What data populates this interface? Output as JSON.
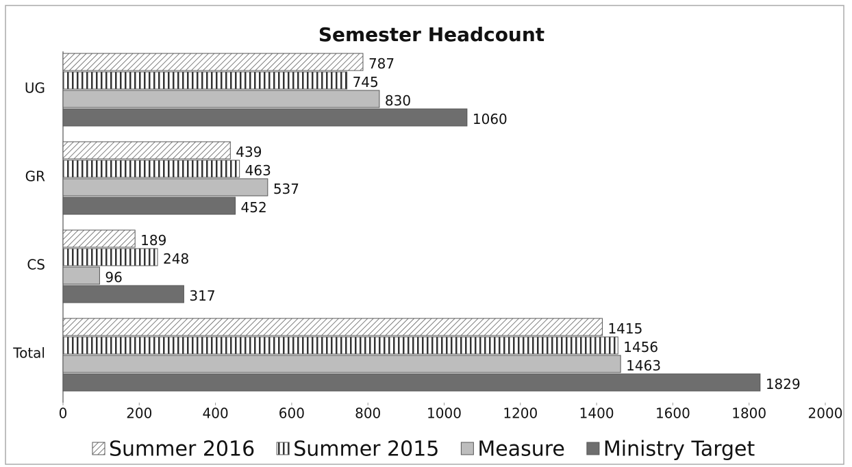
{
  "chart_data": {
    "type": "bar",
    "orientation": "horizontal",
    "title": "Semester Headcount",
    "categories": [
      "UG",
      "GR",
      "CS",
      "Total"
    ],
    "series": [
      {
        "name": "Summer 2016",
        "color": "#ffffff",
        "pattern": "diagonal",
        "values": [
          787,
          439,
          189,
          1415
        ]
      },
      {
        "name": "Summer 2015",
        "color": "#ffffff",
        "pattern": "vertical",
        "values": [
          745,
          463,
          248,
          1456
        ]
      },
      {
        "name": "Measure",
        "color": "#bdbdbd",
        "pattern": "solid",
        "values": [
          830,
          537,
          96,
          1463
        ]
      },
      {
        "name": "Ministry Target",
        "color": "#6e6e6e",
        "pattern": "solid",
        "values": [
          1060,
          452,
          317,
          1829
        ]
      }
    ],
    "xlim": [
      0,
      2000
    ],
    "xticks": [
      0,
      200,
      400,
      600,
      800,
      1000,
      1200,
      1400,
      1600,
      1800,
      2000
    ],
    "grid": false,
    "legend": "bottom"
  }
}
